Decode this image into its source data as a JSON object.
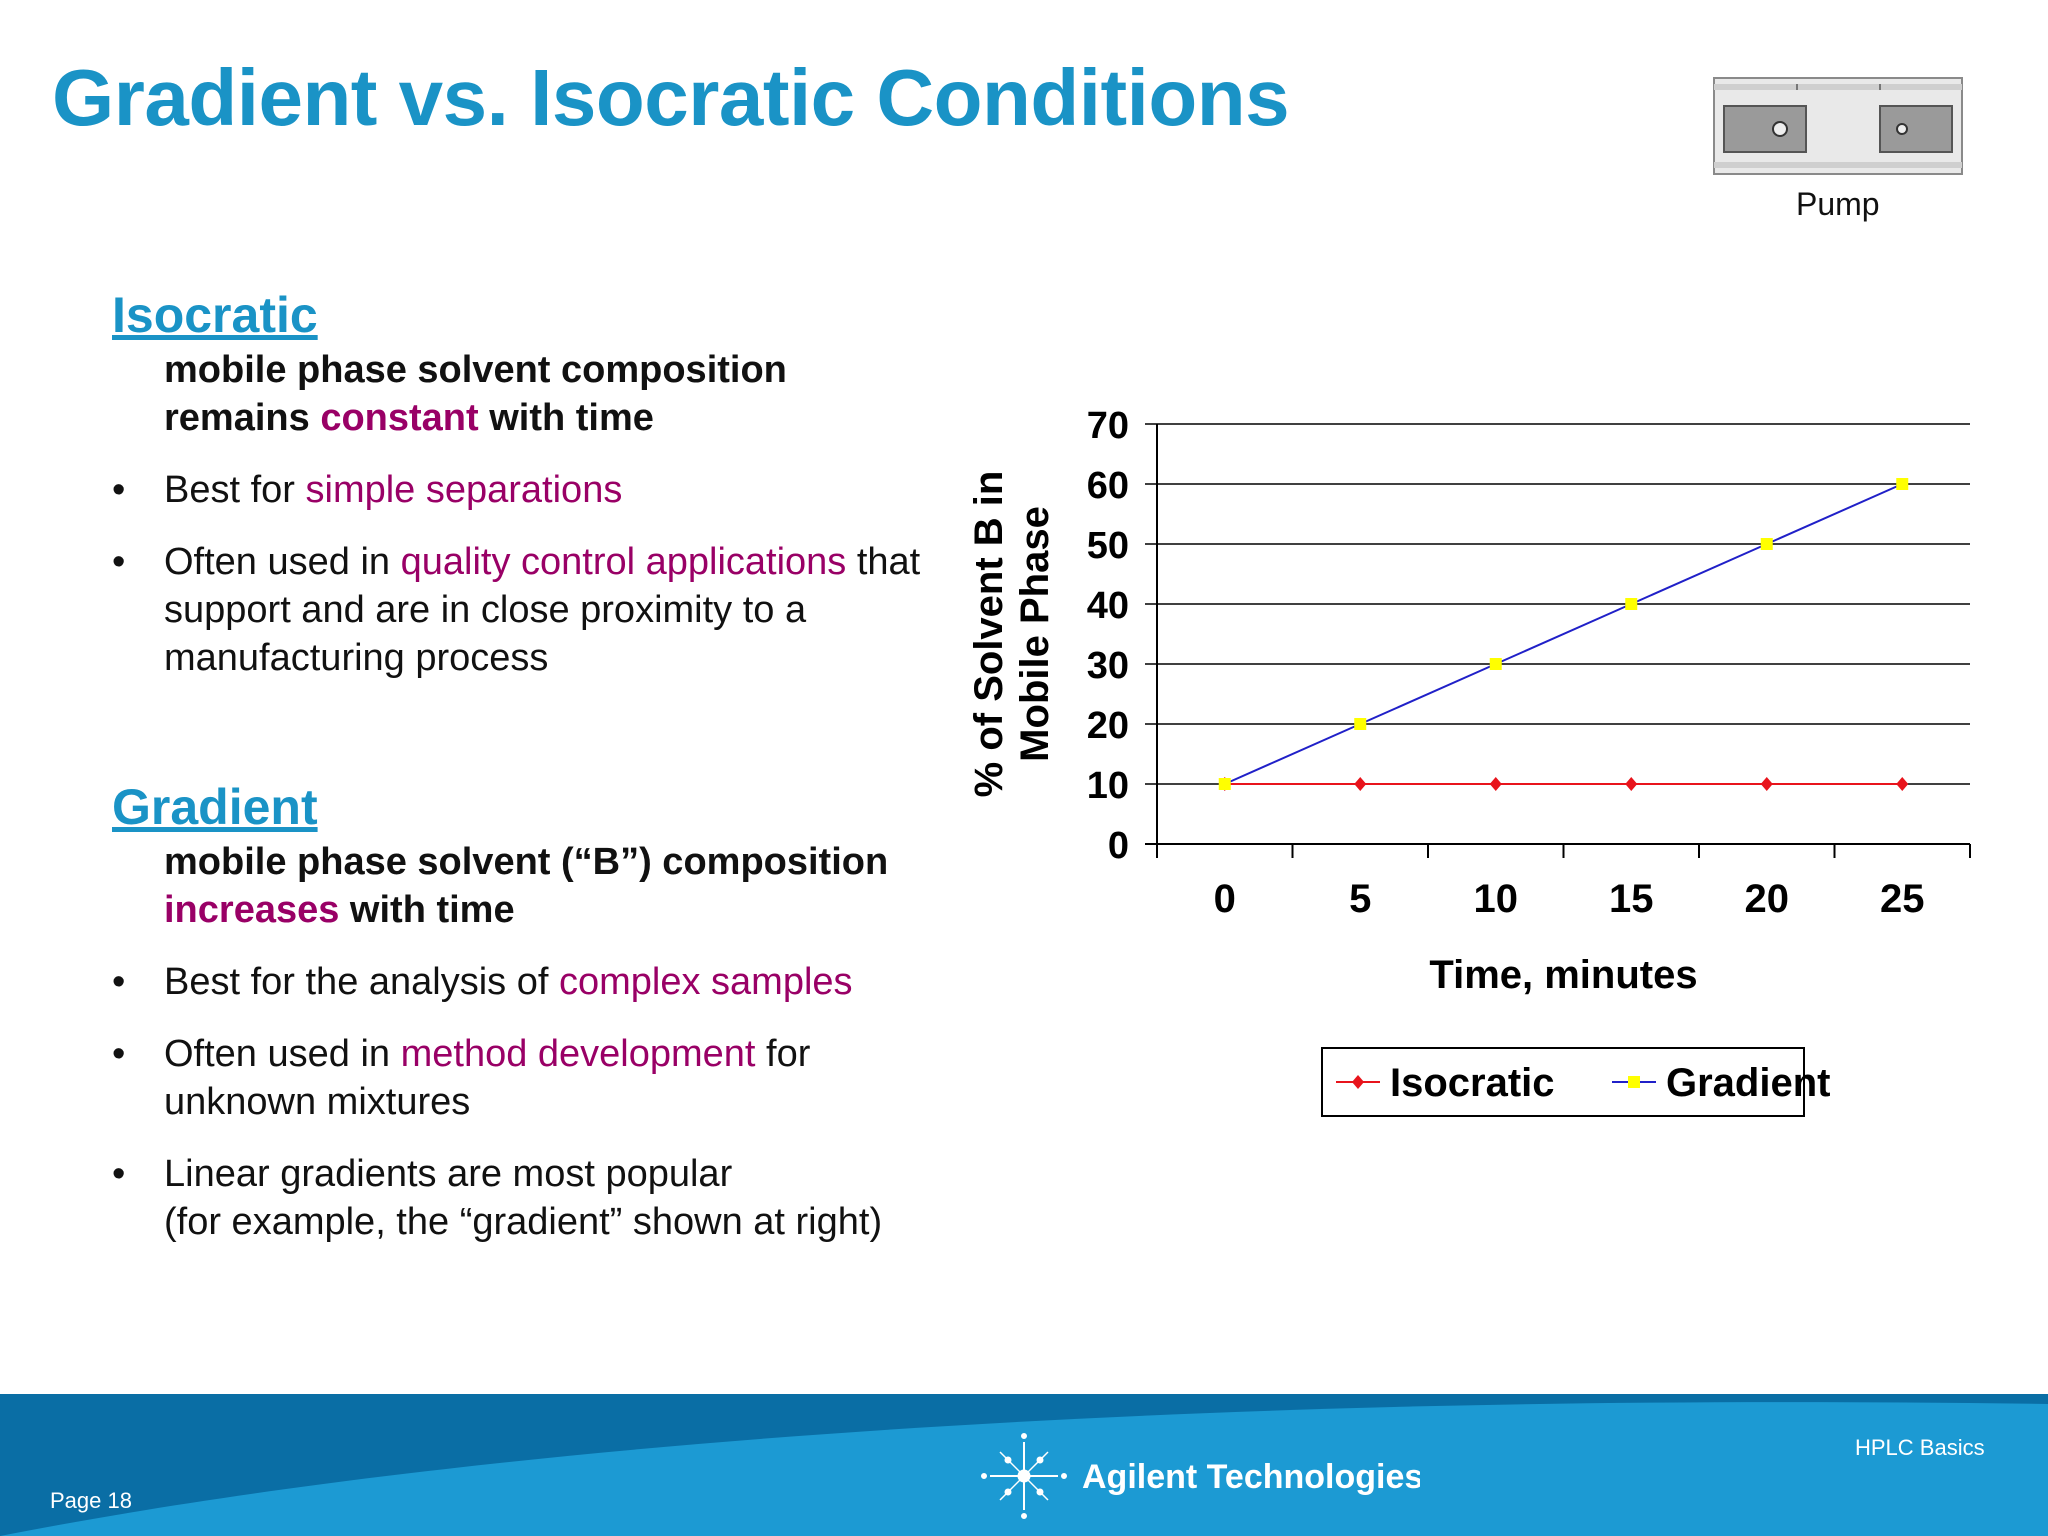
{
  "slide": {
    "title": "Gradient vs. Isocratic Conditions",
    "pump_label": "Pump"
  },
  "isocratic": {
    "heading": "Isocratic",
    "desc": [
      {
        "t": "mobile phase solvent composition",
        "e": false
      },
      {
        "t": "remains ",
        "e": false
      },
      {
        "t": "constant",
        "e": true
      },
      {
        "t": " with time",
        "e": false
      }
    ],
    "bullets": [
      [
        {
          "t": "Best for ",
          "e": false
        },
        {
          "t": "simple separations",
          "e": true
        }
      ],
      [
        {
          "t": "Often used in ",
          "e": false
        },
        {
          "t": "quality control applications",
          "e": true
        },
        {
          "t": " that support and are in close proximity to a manufacturing process",
          "e": false
        }
      ]
    ]
  },
  "gradient": {
    "heading": "Gradient",
    "desc": [
      {
        "t": "mobile phase solvent (“B”) composition",
        "e": false
      },
      {
        "t": "increases",
        "e": true
      },
      {
        "t": " with time",
        "e": false
      }
    ],
    "bullets": [
      [
        {
          "t": "Best for the analysis of ",
          "e": false
        },
        {
          "t": "complex samples",
          "e": true
        }
      ],
      [
        {
          "t": "Often used in ",
          "e": false
        },
        {
          "t": "method development",
          "e": true
        },
        {
          "t": " for unknown mixtures",
          "e": false
        }
      ],
      [
        {
          "t": "Linear gradients are most popular",
          "e": false
        },
        {
          "t": "(for example, the “gradient” shown at right)",
          "e": false
        }
      ]
    ]
  },
  "chart_data": {
    "type": "line",
    "title": "",
    "xlabel": "Time, minutes",
    "ylabel": "% of Solvent B in Mobile Phase",
    "ylabel_lines": [
      "% of Solvent B in",
      "Mobile Phase"
    ],
    "categories": [
      "0",
      "5",
      "10",
      "15",
      "20",
      "25"
    ],
    "x": [
      0,
      5,
      10,
      15,
      20,
      25
    ],
    "ylim": [
      0,
      70
    ],
    "yticks": [
      0,
      10,
      20,
      30,
      40,
      50,
      60,
      70
    ],
    "grid": true,
    "legend_placement": "bottom",
    "series": [
      {
        "name": "Isocratic",
        "values": [
          10,
          10,
          10,
          10,
          10,
          10
        ],
        "line_color": "#e8141c",
        "marker_color": "#e8141c",
        "marker": "diamond"
      },
      {
        "name": "Gradient",
        "values": [
          10,
          20,
          30,
          40,
          50,
          60
        ],
        "line_color": "#2020c8",
        "marker_color": "#ffff00",
        "marker": "square"
      }
    ]
  },
  "footer": {
    "page": "Page 18",
    "deck": "HPLC  Basics",
    "brand": "Agilent Technologies"
  },
  "colors": {
    "accent": "#1a93c6",
    "emphasis": "#990066",
    "footer_dark": "#0a6ea5",
    "footer_light": "#1c9ad3"
  }
}
